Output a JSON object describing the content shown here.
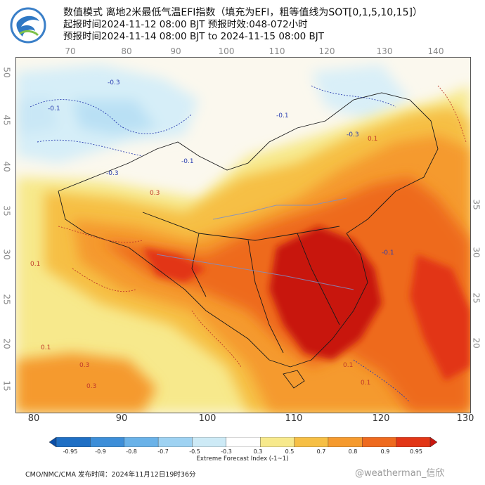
{
  "header": {
    "line1": "数值模式  离地2米最低气温EFI指数（填充为EFI，粗等值线为SOT[0,1,5,10,15]）",
    "line2": "起报时间2024-11-12 08:00 BJT  预报时效:048-072小时",
    "line3": "预报时间2024-11-14 08:00 BJT to 2024-11-15 08:00 BJT"
  },
  "map": {
    "top_lon_ticks": [
      "70",
      "80",
      "90",
      "100",
      "110",
      "120",
      "130",
      "140"
    ],
    "bottom_lon_ticks": [
      "80",
      "90",
      "100",
      "110",
      "120",
      "130"
    ],
    "left_lat_ticks": [
      "50",
      "45",
      "40",
      "35",
      "30",
      "25",
      "20",
      "15"
    ],
    "right_lat_ticks": [
      "35",
      "30",
      "25",
      "20"
    ],
    "contour_labels": [
      "-0.3",
      "-0.1",
      "-0.3",
      "-0.1",
      "-0.3",
      "0.1",
      "-0.1",
      "0.3",
      "0.1",
      "-0.1",
      "0.1",
      "0.3",
      "0.3",
      "0.1",
      "0.1"
    ]
  },
  "colorbar": {
    "labels": [
      "-0.95",
      "-0.9",
      "-0.8",
      "-0.7",
      "-0.5",
      "-0.3",
      "0.3",
      "0.5",
      "0.7",
      "0.8",
      "0.9",
      "0.95"
    ],
    "colors": [
      "#0a4ea8",
      "#1f6fc4",
      "#3d8ed8",
      "#6ab2e8",
      "#9ed2f2",
      "#cdeaf6",
      "#ffffff",
      "#f7e98c",
      "#f6bf45",
      "#f59a2e",
      "#ee6a1e",
      "#e23616",
      "#c8160e"
    ],
    "title": "Extreme Forecast Index (-1~1)"
  },
  "footer": {
    "issuer": "CMO/NMC/CMA  发布时间：2024年11月12日19时36分",
    "watermark": "@weatherman_信欣"
  }
}
